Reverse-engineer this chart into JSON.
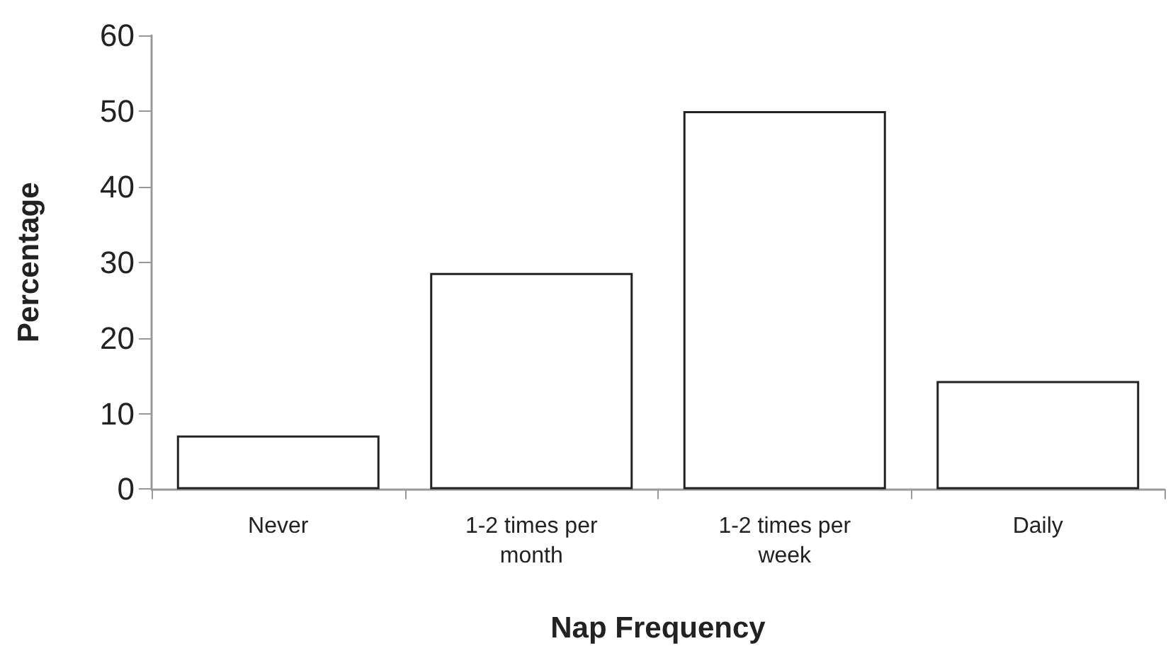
{
  "chart_data": {
    "type": "bar",
    "xlabel": "Nap Frequency",
    "ylabel": "Percentage",
    "categories": [
      "Never",
      "1-2 times per month",
      "1-2 times per week",
      "Daily"
    ],
    "values": [
      7.1,
      28.6,
      50,
      14.3
    ],
    "color": "#ffffff",
    "ylim": [
      0,
      60
    ],
    "yticks": [
      0,
      10,
      20,
      30,
      40,
      50,
      60
    ],
    "grid": false
  }
}
